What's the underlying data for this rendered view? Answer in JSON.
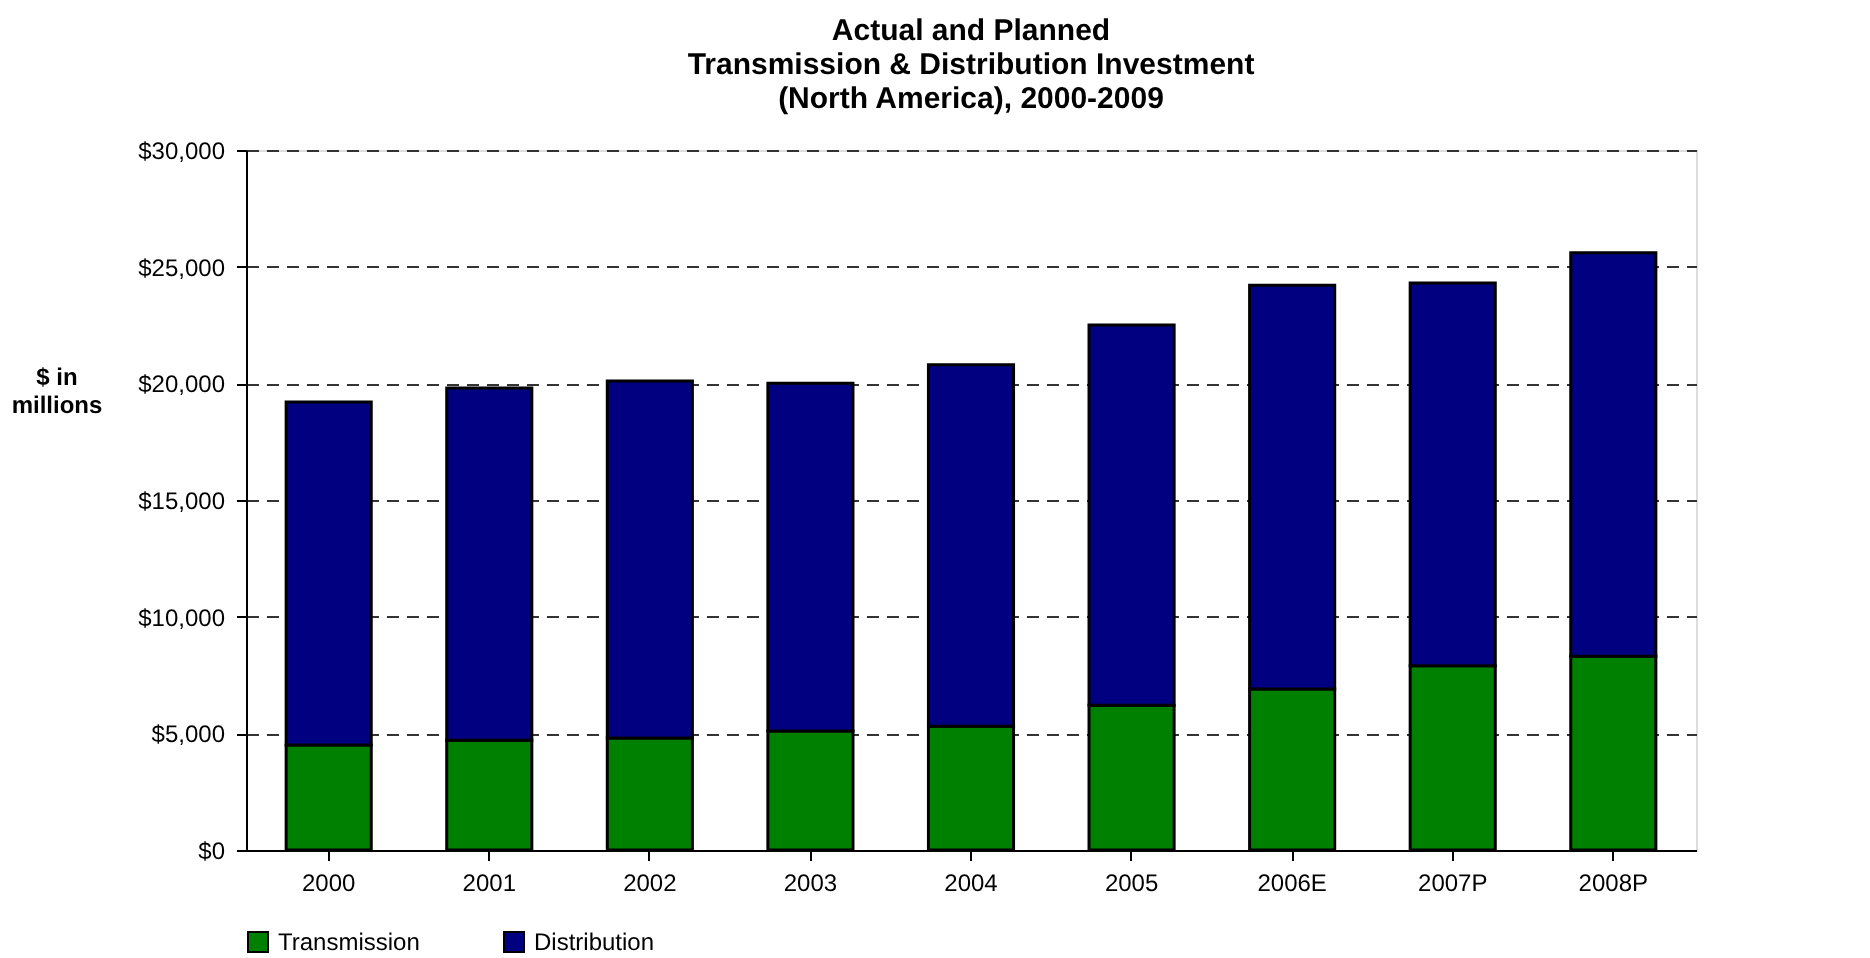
{
  "chart_data": {
    "type": "bar",
    "stacked": true,
    "title": "Actual and Planned\nTransmission & Distribution Investment\n(North America), 2000-2009",
    "ylabel": "$ in\nmillions",
    "categories": [
      "2000",
      "2001",
      "2002",
      "2003",
      "2004",
      "2005",
      "2006E",
      "2007P",
      "2008P"
    ],
    "series": [
      {
        "name": "Transmission",
        "color": "#008000",
        "values": [
          4500,
          4700,
          4800,
          5100,
          5300,
          6200,
          6900,
          7900,
          8300
        ]
      },
      {
        "name": "Distribution",
        "color": "#000080",
        "values": [
          14700,
          15100,
          15300,
          14900,
          15500,
          16300,
          17300,
          16400,
          17300
        ]
      }
    ],
    "ylim": [
      0,
      30000
    ],
    "yticks": [
      {
        "value": 0,
        "label": "$0"
      },
      {
        "value": 5000,
        "label": "$5,000"
      },
      {
        "value": 10000,
        "label": "$10,000"
      },
      {
        "value": 15000,
        "label": "$15,000"
      },
      {
        "value": 20000,
        "label": "$20,000"
      },
      {
        "value": 25000,
        "label": "$25,000"
      },
      {
        "value": 30000,
        "label": "$30,000"
      }
    ],
    "grid": "y",
    "legend": "bottom"
  }
}
